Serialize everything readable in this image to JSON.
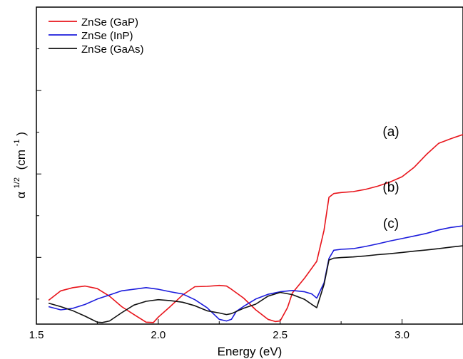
{
  "chart_data": {
    "type": "line",
    "xlabel": "Energy (eV)",
    "ylabel": {
      "base": "α",
      "sup": "1/2",
      "unit": "(cm",
      "unit_sup": "-1",
      "close": ")"
    },
    "xlim": [
      1.5,
      3.25
    ],
    "ylim": [
      0,
      10
    ],
    "xticks": [
      1.5,
      2.0,
      2.5,
      3.0
    ],
    "xtick_labels": [
      "1.5",
      "2.0",
      "2.5",
      "3.0"
    ],
    "y_tick_labels_shown": false,
    "grid": false,
    "legend_position": "top-left",
    "series": [
      {
        "name": "ZnSe (GaP)",
        "color": "#e8141b",
        "annotation": "(a)",
        "x": [
          1.55,
          1.6,
          1.65,
          1.7,
          1.75,
          1.8,
          1.85,
          1.9,
          1.95,
          1.98,
          2.0,
          2.05,
          2.1,
          2.15,
          2.2,
          2.25,
          2.28,
          2.3,
          2.35,
          2.4,
          2.45,
          2.48,
          2.5,
          2.53,
          2.55,
          2.6,
          2.65,
          2.68,
          2.7,
          2.72,
          2.75,
          2.8,
          2.85,
          2.9,
          2.95,
          3.0,
          3.05,
          3.1,
          3.15,
          3.2,
          3.25
        ],
        "y": [
          0.75,
          1.05,
          1.15,
          1.2,
          1.12,
          0.88,
          0.55,
          0.3,
          0.06,
          0.05,
          0.22,
          0.56,
          0.92,
          1.18,
          1.19,
          1.22,
          1.2,
          1.1,
          0.82,
          0.45,
          0.15,
          0.08,
          0.1,
          0.52,
          0.98,
          1.45,
          1.98,
          2.96,
          4.0,
          4.12,
          4.15,
          4.18,
          4.25,
          4.35,
          4.48,
          4.65,
          4.95,
          5.35,
          5.7,
          5.85,
          5.98
        ]
      },
      {
        "name": "ZnSe (InP)",
        "color": "#1c1cdc",
        "annotation": "(b)",
        "x": [
          1.55,
          1.6,
          1.65,
          1.7,
          1.75,
          1.8,
          1.85,
          1.9,
          1.95,
          2.0,
          2.05,
          2.1,
          2.15,
          2.2,
          2.25,
          2.28,
          2.3,
          2.32,
          2.35,
          2.4,
          2.45,
          2.5,
          2.55,
          2.6,
          2.63,
          2.65,
          2.68,
          2.7,
          2.72,
          2.75,
          2.8,
          2.85,
          2.9,
          2.95,
          3.0,
          3.05,
          3.1,
          3.15,
          3.2,
          3.25
        ],
        "y": [
          0.55,
          0.45,
          0.5,
          0.62,
          0.79,
          0.92,
          1.05,
          1.1,
          1.15,
          1.1,
          1.02,
          0.95,
          0.77,
          0.52,
          0.15,
          0.1,
          0.15,
          0.4,
          0.56,
          0.79,
          0.94,
          1.02,
          1.06,
          1.02,
          0.95,
          0.82,
          1.3,
          2.07,
          2.33,
          2.36,
          2.38,
          2.45,
          2.53,
          2.62,
          2.7,
          2.78,
          2.86,
          2.97,
          3.05,
          3.1
        ]
      },
      {
        "name": "ZnSe (GaAs)",
        "color": "#111111",
        "annotation": "(c)",
        "x": [
          1.55,
          1.6,
          1.65,
          1.7,
          1.75,
          1.77,
          1.8,
          1.85,
          1.9,
          1.95,
          2.0,
          2.05,
          2.1,
          2.15,
          2.2,
          2.25,
          2.28,
          2.3,
          2.35,
          2.4,
          2.45,
          2.5,
          2.55,
          2.6,
          2.63,
          2.65,
          2.68,
          2.7,
          2.72,
          2.75,
          2.8,
          2.85,
          2.9,
          2.95,
          3.0,
          3.05,
          3.1,
          3.15,
          3.2,
          3.25
        ],
        "y": [
          0.66,
          0.55,
          0.42,
          0.25,
          0.06,
          0.05,
          0.1,
          0.36,
          0.6,
          0.72,
          0.77,
          0.74,
          0.69,
          0.58,
          0.42,
          0.35,
          0.3,
          0.33,
          0.5,
          0.63,
          0.88,
          1.0,
          0.93,
          0.78,
          0.62,
          0.52,
          1.25,
          2.02,
          2.08,
          2.1,
          2.12,
          2.15,
          2.19,
          2.22,
          2.26,
          2.3,
          2.34,
          2.38,
          2.43,
          2.47
        ]
      }
    ]
  }
}
